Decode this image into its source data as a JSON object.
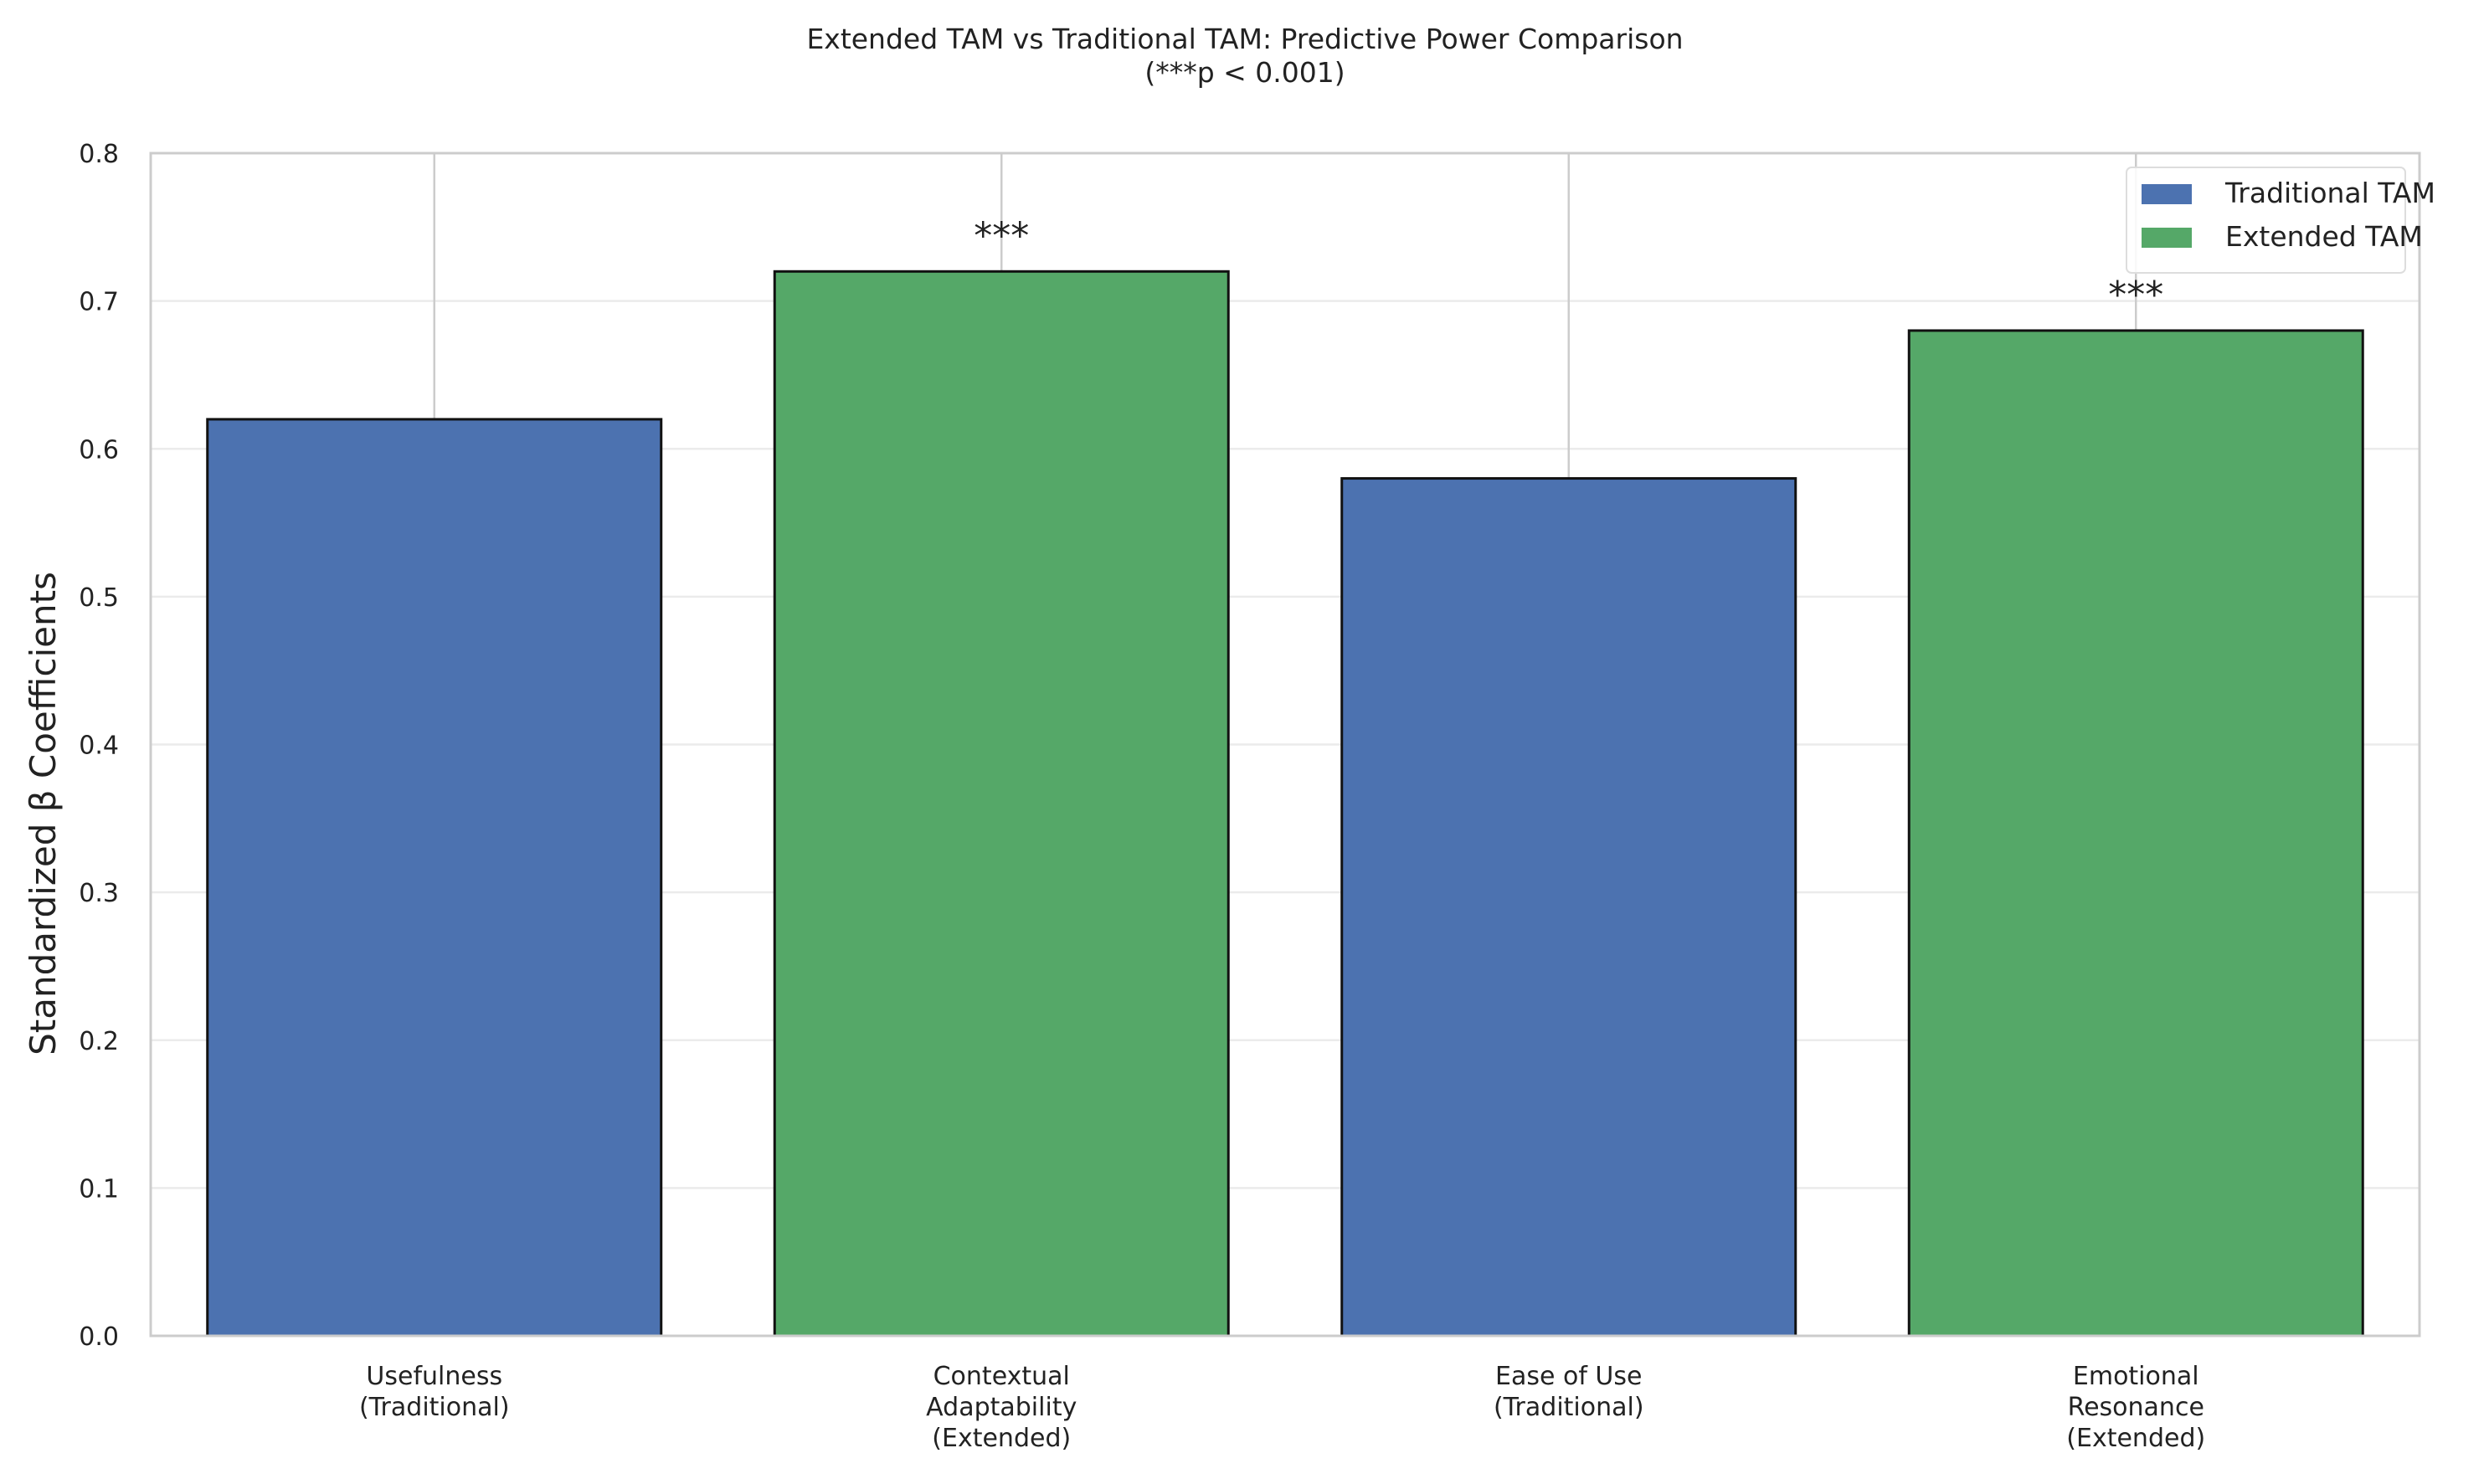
{
  "chart_data": {
    "type": "bar",
    "title": "Extended TAM vs Traditional TAM: Predictive Power Comparison",
    "subtitle": "(***p < 0.001)",
    "xlabel": "",
    "ylabel": "Standardized β Coefficients",
    "ylim": [
      0,
      0.8
    ],
    "yticks": [
      "0.0",
      "0.1",
      "0.2",
      "0.3",
      "0.4",
      "0.5",
      "0.6",
      "0.7",
      "0.8"
    ],
    "categories": [
      [
        "Usefulness",
        "(Traditional)"
      ],
      [
        "Contextual",
        "Adaptability",
        "(Extended)"
      ],
      [
        "Ease of Use",
        "(Traditional)"
      ],
      [
        "Emotional",
        "Resonance",
        "(Extended)"
      ]
    ],
    "values": [
      0.62,
      0.72,
      0.58,
      0.68
    ],
    "groups": [
      "Traditional TAM",
      "Extended TAM",
      "Traditional TAM",
      "Extended TAM"
    ],
    "significance": [
      "",
      "***",
      "",
      "***"
    ],
    "legend": {
      "placement": "top-right",
      "entries": [
        {
          "label": "Traditional TAM",
          "color": "#4c72b0"
        },
        {
          "label": "Extended TAM",
          "color": "#55a868"
        }
      ]
    },
    "colors": {
      "Traditional TAM": "#4c72b0",
      "Extended TAM": "#55a868"
    },
    "grid": true
  }
}
